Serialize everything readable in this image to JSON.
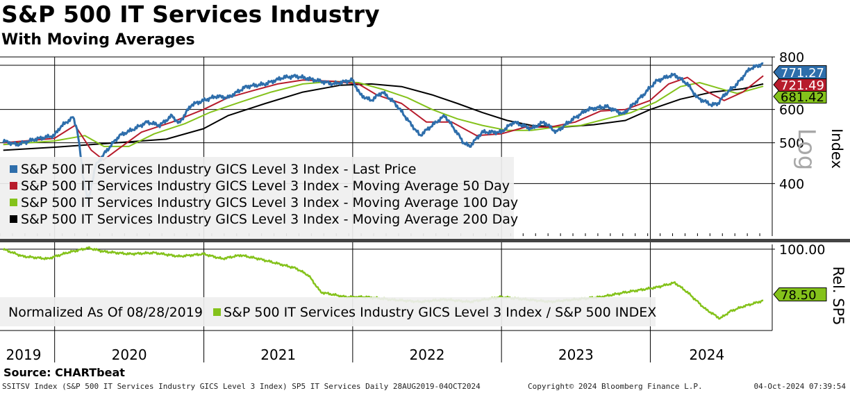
{
  "header": {
    "title": "S&P 500 IT Services Industry",
    "subtitle": "With Moving Averages"
  },
  "source": "Source: CHARTbeat",
  "footer": {
    "left": "SSITSV Index (S&P 500 IT Services Industry GICS Level 3 Index) SP5 IT Services  Daily 28AUG2019-04OCT2024",
    "middle": "Copyright© 2024 Bloomberg Finance L.P.",
    "right": "04-Oct-2024 07:39:54"
  },
  "colors": {
    "last_price": "#2e6eab",
    "ma50": "#b71c2c",
    "ma100": "#84c21b",
    "ma200": "#000000",
    "relative": "#84c21b"
  },
  "chart_data": [
    {
      "type": "line",
      "panel": "top",
      "scale": "log",
      "ylabel": "Index",
      "scale_label": "Log",
      "ylim": [
        300,
        800
      ],
      "yticks": [
        400,
        500,
        600,
        800
      ],
      "ytick_labels": [
        "400",
        "500",
        "600",
        "800"
      ],
      "xticks": [
        "2019",
        "2020",
        "2021",
        "2022",
        "2023",
        "2024"
      ],
      "legend_position": "bottom-left",
      "last_value_labels": [
        "771.27",
        "721.49",
        "681.42"
      ],
      "series": [
        {
          "name": "S&P 500 IT Services Industry GICS Level 3 Index - Last Price",
          "color_key": "last_price",
          "last_label": "771.27",
          "points": [
            [
              "2019-08-28",
              505
            ],
            [
              "2019-10-01",
              495
            ],
            [
              "2019-11-15",
              510
            ],
            [
              "2019-12-31",
              520
            ],
            [
              "2020-01-15",
              545
            ],
            [
              "2020-02-15",
              575
            ],
            [
              "2020-02-25",
              540
            ],
            [
              "2020-03-10",
              420
            ],
            [
              "2020-03-23",
              360
            ],
            [
              "2020-04-10",
              440
            ],
            [
              "2020-05-01",
              470
            ],
            [
              "2020-06-08",
              520
            ],
            [
              "2020-07-15",
              540
            ],
            [
              "2020-08-15",
              560
            ],
            [
              "2020-09-15",
              550
            ],
            [
              "2020-10-15",
              580
            ],
            [
              "2020-11-01",
              555
            ],
            [
              "2020-12-01",
              615
            ],
            [
              "2020-12-31",
              630
            ],
            [
              "2021-02-01",
              645
            ],
            [
              "2021-03-01",
              640
            ],
            [
              "2021-04-15",
              680
            ],
            [
              "2021-06-01",
              690
            ],
            [
              "2021-07-15",
              715
            ],
            [
              "2021-08-15",
              720
            ],
            [
              "2021-09-15",
              710
            ],
            [
              "2021-10-15",
              700
            ],
            [
              "2021-11-15",
              690
            ],
            [
              "2021-12-31",
              705
            ],
            [
              "2022-01-20",
              650
            ],
            [
              "2022-02-15",
              630
            ],
            [
              "2022-03-15",
              660
            ],
            [
              "2022-04-15",
              620
            ],
            [
              "2022-05-20",
              560
            ],
            [
              "2022-06-15",
              520
            ],
            [
              "2022-07-15",
              550
            ],
            [
              "2022-08-15",
              580
            ],
            [
              "2022-09-30",
              500
            ],
            [
              "2022-10-15",
              490
            ],
            [
              "2022-11-15",
              530
            ],
            [
              "2022-12-31",
              530
            ],
            [
              "2023-01-31",
              560
            ],
            [
              "2023-03-15",
              540
            ],
            [
              "2023-04-15",
              560
            ],
            [
              "2023-05-15",
              530
            ],
            [
              "2023-06-15",
              560
            ],
            [
              "2023-07-31",
              600
            ],
            [
              "2023-09-15",
              610
            ],
            [
              "2023-10-27",
              585
            ],
            [
              "2023-12-15",
              650
            ],
            [
              "2024-01-15",
              700
            ],
            [
              "2024-02-15",
              720
            ],
            [
              "2024-03-01",
              725
            ],
            [
              "2024-04-01",
              690
            ],
            [
              "2024-04-25",
              640
            ],
            [
              "2024-05-31",
              615
            ],
            [
              "2024-06-15",
              620
            ],
            [
              "2024-07-01",
              650
            ],
            [
              "2024-08-01",
              690
            ],
            [
              "2024-09-01",
              750
            ],
            [
              "2024-10-04",
              771.27
            ]
          ]
        },
        {
          "name": "S&P 500 IT Services Industry GICS Level 3 Index - Moving Average 50 Day",
          "color_key": "ma50",
          "last_label": "721.49",
          "points": [
            [
              "2019-08-28",
              500
            ],
            [
              "2019-12-31",
              512
            ],
            [
              "2020-02-20",
              550
            ],
            [
              "2020-03-31",
              480
            ],
            [
              "2020-04-30",
              455
            ],
            [
              "2020-06-01",
              480
            ],
            [
              "2020-08-01",
              530
            ],
            [
              "2020-10-15",
              560
            ],
            [
              "2020-12-31",
              600
            ],
            [
              "2021-03-01",
              640
            ],
            [
              "2021-05-01",
              665
            ],
            [
              "2021-07-01",
              690
            ],
            [
              "2021-09-01",
              705
            ],
            [
              "2021-11-15",
              700
            ],
            [
              "2022-01-15",
              690
            ],
            [
              "2022-03-01",
              650
            ],
            [
              "2022-05-01",
              620
            ],
            [
              "2022-07-01",
              560
            ],
            [
              "2022-09-01",
              560
            ],
            [
              "2022-11-01",
              520
            ],
            [
              "2022-12-31",
              525
            ],
            [
              "2023-03-01",
              545
            ],
            [
              "2023-05-01",
              545
            ],
            [
              "2023-07-01",
              560
            ],
            [
              "2023-09-01",
              595
            ],
            [
              "2023-11-01",
              600
            ],
            [
              "2023-12-31",
              630
            ],
            [
              "2024-02-15",
              690
            ],
            [
              "2024-04-01",
              715
            ],
            [
              "2024-05-15",
              665
            ],
            [
              "2024-06-30",
              630
            ],
            [
              "2024-08-15",
              660
            ],
            [
              "2024-10-04",
              721.49
            ]
          ]
        },
        {
          "name": "S&P 500 IT Services Industry GICS Level 3 Index - Moving Average 100 Day",
          "color_key": "ma100",
          "last_label": "681.42",
          "points": [
            [
              "2019-08-28",
              495
            ],
            [
              "2019-12-31",
              505
            ],
            [
              "2020-03-15",
              520
            ],
            [
              "2020-05-01",
              490
            ],
            [
              "2020-07-01",
              490
            ],
            [
              "2020-09-01",
              525
            ],
            [
              "2020-11-15",
              555
            ],
            [
              "2021-01-15",
              590
            ],
            [
              "2021-04-01",
              625
            ],
            [
              "2021-06-15",
              660
            ],
            [
              "2021-09-01",
              690
            ],
            [
              "2021-11-15",
              700
            ],
            [
              "2022-01-15",
              695
            ],
            [
              "2022-03-15",
              670
            ],
            [
              "2022-05-15",
              640
            ],
            [
              "2022-07-15",
              600
            ],
            [
              "2022-09-15",
              570
            ],
            [
              "2022-11-15",
              550
            ],
            [
              "2023-01-15",
              535
            ],
            [
              "2023-03-15",
              535
            ],
            [
              "2023-05-15",
              545
            ],
            [
              "2023-07-15",
              550
            ],
            [
              "2023-09-15",
              570
            ],
            [
              "2023-11-15",
              590
            ],
            [
              "2024-01-15",
              625
            ],
            [
              "2024-03-15",
              680
            ],
            [
              "2024-05-01",
              695
            ],
            [
              "2024-06-15",
              675
            ],
            [
              "2024-08-01",
              655
            ],
            [
              "2024-10-04",
              681.42
            ]
          ]
        },
        {
          "name": "S&P 500 IT Services Industry GICS Level 3 Index - Moving Average 200 Day",
          "color_key": "ma200",
          "last_label": "",
          "points": [
            [
              "2019-08-28",
              480
            ],
            [
              "2020-01-01",
              488
            ],
            [
              "2020-06-01",
              500
            ],
            [
              "2020-10-01",
              510
            ],
            [
              "2020-12-31",
              540
            ],
            [
              "2021-03-01",
              580
            ],
            [
              "2021-06-01",
              620
            ],
            [
              "2021-09-01",
              660
            ],
            [
              "2021-12-01",
              685
            ],
            [
              "2022-02-15",
              690
            ],
            [
              "2022-05-01",
              680
            ],
            [
              "2022-07-15",
              650
            ],
            [
              "2022-09-15",
              620
            ],
            [
              "2022-11-15",
              590
            ],
            [
              "2023-01-15",
              565
            ],
            [
              "2023-03-15",
              550
            ],
            [
              "2023-06-01",
              545
            ],
            [
              "2023-08-15",
              552
            ],
            [
              "2023-11-01",
              565
            ],
            [
              "2024-01-01",
              600
            ],
            [
              "2024-03-15",
              635
            ],
            [
              "2024-06-01",
              660
            ],
            [
              "2024-08-15",
              672
            ],
            [
              "2024-10-04",
              690
            ]
          ]
        }
      ]
    },
    {
      "type": "line",
      "panel": "bottom",
      "ylabel": "Rel. SP5",
      "ylim": [
        66,
        102
      ],
      "yticks": [
        100
      ],
      "ytick_labels": [
        "100.00"
      ],
      "normalized_label": "Normalized As Of 08/28/2019",
      "legend_position": "bottom-left",
      "last_value_labels": [
        "78.50"
      ],
      "series": [
        {
          "name": "S&P 500 IT Services Industry GICS Level 3 Index / S&P 500 INDEX",
          "color_key": "relative",
          "last_label": "78.50",
          "points": [
            [
              "2019-08-28",
              100
            ],
            [
              "2019-10-15",
              97
            ],
            [
              "2019-12-15",
              96
            ],
            [
              "2020-01-31",
              98.5
            ],
            [
              "2020-03-23",
              100.5
            ],
            [
              "2020-05-01",
              99
            ],
            [
              "2020-07-01",
              98
            ],
            [
              "2020-09-01",
              98.5
            ],
            [
              "2020-11-01",
              97
            ],
            [
              "2020-12-31",
              98
            ],
            [
              "2021-02-15",
              96
            ],
            [
              "2021-04-01",
              97.5
            ],
            [
              "2021-05-15",
              96
            ],
            [
              "2021-07-01",
              94
            ],
            [
              "2021-08-15",
              92
            ],
            [
              "2021-09-15",
              89
            ],
            [
              "2021-10-15",
              82
            ],
            [
              "2021-12-15",
              80
            ],
            [
              "2022-02-01",
              80
            ],
            [
              "2022-04-01",
              79
            ],
            [
              "2022-06-15",
              78
            ],
            [
              "2022-08-15",
              79
            ],
            [
              "2022-10-15",
              78
            ],
            [
              "2022-12-31",
              80
            ],
            [
              "2023-03-01",
              79
            ],
            [
              "2023-05-01",
              78
            ],
            [
              "2023-07-01",
              79
            ],
            [
              "2023-09-01",
              80
            ],
            [
              "2023-11-01",
              82
            ],
            [
              "2024-01-15",
              84
            ],
            [
              "2024-03-01",
              86
            ],
            [
              "2024-04-01",
              82
            ],
            [
              "2024-05-15",
              75
            ],
            [
              "2024-06-20",
              71
            ],
            [
              "2024-07-15",
              74
            ],
            [
              "2024-08-15",
              76
            ],
            [
              "2024-10-04",
              78.5
            ]
          ]
        }
      ]
    }
  ]
}
